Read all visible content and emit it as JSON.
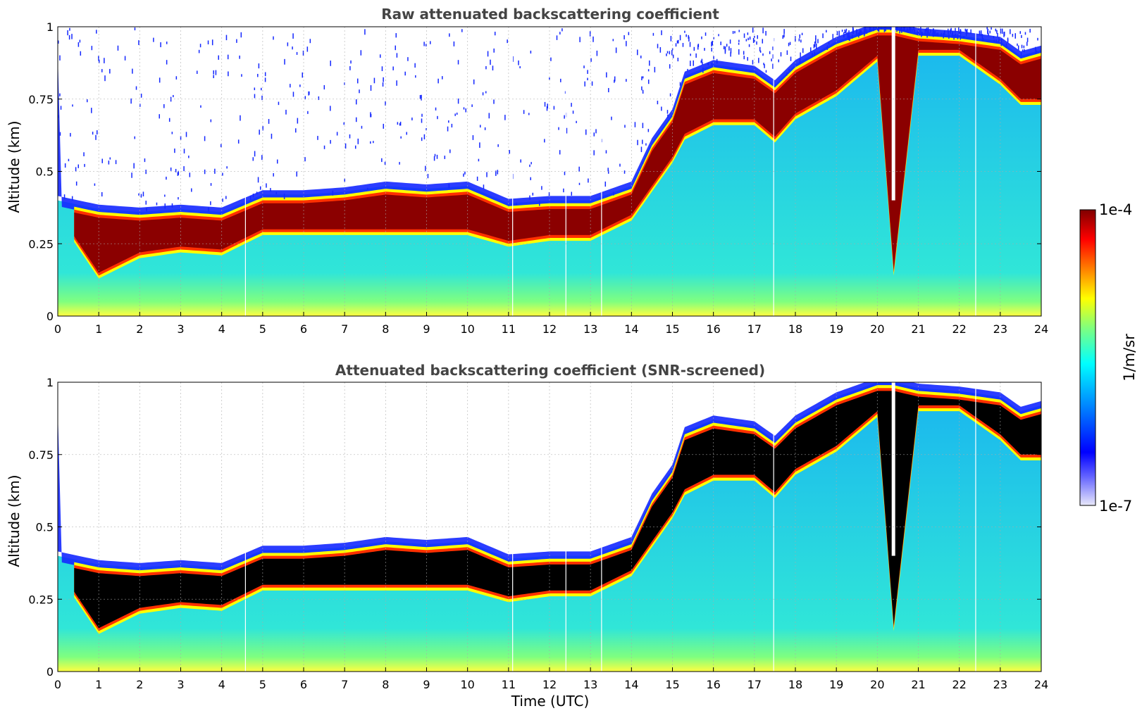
{
  "chart_data": [
    {
      "type": "heatmap",
      "title": "Raw attenuated backscattering coefficient",
      "xlabel": "",
      "ylabel": "Altitude (km)",
      "xlim": [
        0,
        24
      ],
      "ylim": [
        0,
        1
      ],
      "xticks": [
        "0",
        "1",
        "2",
        "3",
        "4",
        "5",
        "6",
        "7",
        "8",
        "9",
        "10",
        "11",
        "12",
        "13",
        "14",
        "15",
        "16",
        "17",
        "18",
        "19",
        "20",
        "21",
        "22",
        "23",
        "24"
      ],
      "yticks": [
        "0",
        "0.25",
        "0.5",
        "0.75",
        "1"
      ],
      "grid": true,
      "layer_altitude_km": {
        "time_utc": [
          0,
          1,
          2,
          3,
          4,
          5,
          6,
          7,
          8,
          9,
          10,
          11,
          12,
          13,
          14,
          14.5,
          15,
          15.3,
          16,
          17,
          17.5,
          18,
          19,
          20,
          20.4,
          21,
          22,
          23,
          23.5,
          24
        ],
        "top": [
          0.4,
          0.37,
          0.36,
          0.37,
          0.36,
          0.42,
          0.42,
          0.43,
          0.45,
          0.44,
          0.45,
          0.39,
          0.4,
          0.4,
          0.45,
          0.6,
          0.7,
          0.83,
          0.87,
          0.85,
          0.8,
          0.87,
          0.95,
          1.0,
          1.0,
          0.98,
          0.97,
          0.95,
          0.9,
          0.92
        ],
        "bottom": [
          0.36,
          0.15,
          0.22,
          0.24,
          0.23,
          0.3,
          0.3,
          0.3,
          0.3,
          0.3,
          0.3,
          0.26,
          0.28,
          0.28,
          0.35,
          0.45,
          0.55,
          0.63,
          0.68,
          0.68,
          0.62,
          0.7,
          0.78,
          0.9,
          0.16,
          0.92,
          0.92,
          0.82,
          0.75,
          0.75
        ]
      }
    },
    {
      "type": "heatmap",
      "title": "Attenuated backscattering coefficient (SNR-screened)",
      "xlabel": "Time (UTC)",
      "ylabel": "Altitude (km)",
      "xlim": [
        0,
        24
      ],
      "ylim": [
        0,
        1
      ],
      "xticks": [
        "0",
        "1",
        "2",
        "3",
        "4",
        "5",
        "6",
        "7",
        "8",
        "9",
        "10",
        "11",
        "12",
        "13",
        "14",
        "15",
        "16",
        "17",
        "18",
        "19",
        "20",
        "21",
        "22",
        "23",
        "24"
      ],
      "yticks": [
        "0",
        "0.25",
        "0.5",
        "0.75",
        "1"
      ],
      "grid": true,
      "saturated_color": "#000000"
    }
  ],
  "colorbar": {
    "label": "1/m/sr",
    "max_label": "1e-4",
    "min_label": "1e-7",
    "scale": "log",
    "colors": [
      "#e8e8fa",
      "#0000ff",
      "#0080ff",
      "#00ffff",
      "#7fff7f",
      "#ffff00",
      "#ff8000",
      "#ff0000",
      "#800000"
    ]
  },
  "colors": {
    "layer_raw": "#8b0000",
    "layer_screened": "#000000",
    "background_aerosol": "#3cc8e6",
    "noise": "#1428ff"
  }
}
